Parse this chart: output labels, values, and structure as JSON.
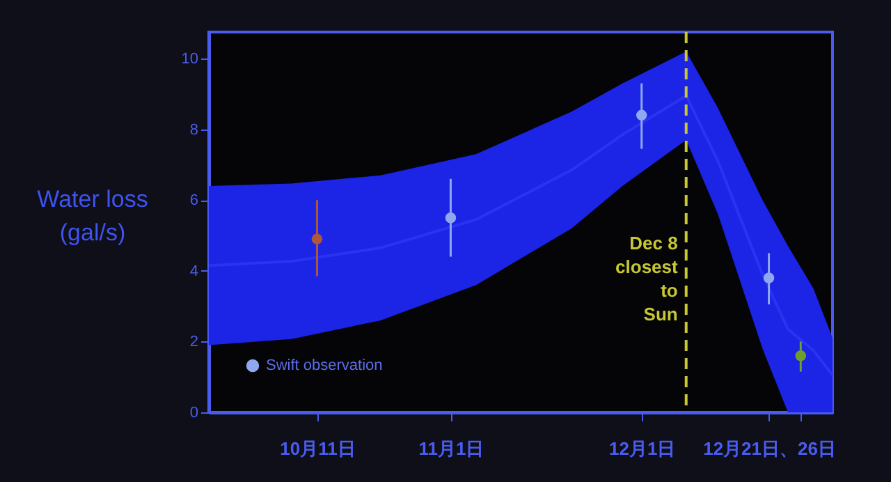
{
  "chart_data": {
    "type": "scatter",
    "ylabel": "Water loss\n(gal/s)",
    "xlim": [
      "--09-24",
      "--12-31"
    ],
    "xticks": [
      {
        "value": "--10-11",
        "label": "10月11日"
      },
      {
        "value": "--11-01",
        "label": "11月1日"
      },
      {
        "value": "--12-01",
        "label": "12月1日"
      },
      {
        "value": "--12-21",
        "label": "12月21日、26日"
      },
      {
        "value": "--12-26",
        "label": null
      }
    ],
    "ylim": [
      0,
      10.75
    ],
    "yticks": [
      0,
      2,
      4,
      6,
      8,
      10
    ],
    "legend": "bottom left",
    "series": [
      {
        "type": "line",
        "color": "#1c24e6",
        "x": [
          "--09-24",
          "--10-07",
          "--10-21",
          "--11-05",
          "--11-20",
          "--11-28",
          "--12-08",
          "--12-13",
          "--12-20",
          "--12-24",
          "--12-28",
          "--12-31"
        ],
        "values": [
          4.15,
          4.27,
          4.65,
          5.45,
          6.85,
          7.85,
          8.95,
          7.1,
          3.9,
          2.35,
          1.75,
          1.05
        ],
        "lower": [
          1.9,
          2.07,
          2.6,
          3.6,
          5.2,
          6.4,
          7.7,
          5.6,
          1.8,
          0,
          0,
          0
        ],
        "upper": [
          6.4,
          6.47,
          6.7,
          7.3,
          8.5,
          9.3,
          10.2,
          8.6,
          6.0,
          4.7,
          3.5,
          2.1
        ]
      },
      {
        "name": "Swift observation",
        "marker": "circle",
        "color": "#8fa8f0",
        "colors": [
          "#b0563c",
          "#8fa8f0",
          "#8fa8f0",
          "#8fa8f0",
          "#6f9e30"
        ],
        "x": [
          "--10-11",
          "--11-01",
          "--12-01",
          "--12-21",
          "--12-26"
        ],
        "values": [
          4.9,
          5.5,
          8.4,
          3.8,
          1.6
        ],
        "errors": [
          [
            3.85,
            6.0
          ],
          [
            4.4,
            6.6
          ],
          [
            7.45,
            9.3
          ],
          [
            3.05,
            4.5
          ],
          [
            1.15,
            2.0
          ]
        ]
      }
    ],
    "ref_lines": [
      {
        "axis": "x",
        "value": "--12-08",
        "label": "Dec 8\nclosest\nto\nSun",
        "color": "#c8c832",
        "line_style": "dashed"
      }
    ]
  }
}
